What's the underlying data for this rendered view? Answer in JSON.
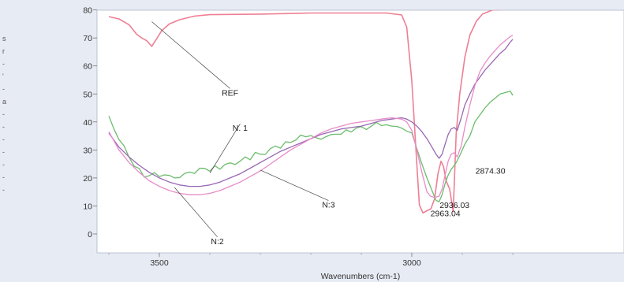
{
  "chart_data": {
    "type": "line",
    "xlabel": "Wavenumbers (cm-1)",
    "ylabel": "",
    "title": "",
    "x_reversed": true,
    "xlim": [
      3600,
      2800
    ],
    "ylim": [
      -5,
      80
    ],
    "x_ticks": [
      3500,
      3000
    ],
    "y_ticks": [
      0,
      10,
      20,
      30,
      40,
      50,
      60,
      70,
      80
    ],
    "grid": false,
    "series": [
      {
        "name": "REF",
        "color": "#ee7f94",
        "points": [
          [
            3600,
            77.6
          ],
          [
            3580,
            76.8
          ],
          [
            3560,
            74.7
          ],
          [
            3545,
            71.3
          ],
          [
            3535,
            70.0
          ],
          [
            3525,
            69.0
          ],
          [
            3515,
            67.0
          ],
          [
            3505,
            69.8
          ],
          [
            3495,
            72.7
          ],
          [
            3480,
            75.0
          ],
          [
            3460,
            76.5
          ],
          [
            3430,
            77.8
          ],
          [
            3400,
            78.3
          ],
          [
            3300,
            78.5
          ],
          [
            3200,
            78.9
          ],
          [
            3100,
            78.9
          ],
          [
            3050,
            78.9
          ],
          [
            3020,
            78.2
          ],
          [
            3010,
            73.8
          ],
          [
            3000,
            54.7
          ],
          [
            2990,
            24.8
          ],
          [
            2985,
            10.4
          ],
          [
            2978,
            7.5
          ],
          [
            2970,
            8.3
          ],
          [
            2962,
            9.0
          ],
          [
            2955,
            12.5
          ],
          [
            2948,
            21.7
          ],
          [
            2942,
            26.0
          ],
          [
            2937,
            24.0
          ],
          [
            2932,
            19.0
          ],
          [
            2925,
            16.0
          ],
          [
            2918,
            8.0
          ],
          [
            2912,
            36.0
          ],
          [
            2905,
            50.0
          ],
          [
            2895,
            63.0
          ],
          [
            2885,
            71.0
          ],
          [
            2872,
            76.0
          ],
          [
            2860,
            78.5
          ],
          [
            2840,
            80.0
          ],
          [
            2800,
            80.2
          ]
        ]
      },
      {
        "name": "N. 1",
        "color": "#6cbc6c",
        "points": [
          [
            3600,
            42.1
          ],
          [
            3590,
            37.5
          ],
          [
            3580,
            33.7
          ],
          [
            3570,
            31.5
          ],
          [
            3560,
            27.4
          ],
          [
            3550,
            24.2
          ],
          [
            3540,
            23.4
          ],
          [
            3530,
            20.3
          ],
          [
            3520,
            20.8
          ],
          [
            3510,
            21.9
          ],
          [
            3500,
            20.5
          ],
          [
            3490,
            21.1
          ],
          [
            3480,
            20.9
          ],
          [
            3470,
            20.0
          ],
          [
            3460,
            20.1
          ],
          [
            3450,
            21.6
          ],
          [
            3440,
            22.1
          ],
          [
            3430,
            21.6
          ],
          [
            3420,
            23.5
          ],
          [
            3410,
            23.4
          ],
          [
            3400,
            22.4
          ],
          [
            3390,
            24.4
          ],
          [
            3380,
            23.1
          ],
          [
            3370,
            24.8
          ],
          [
            3360,
            25.4
          ],
          [
            3350,
            24.8
          ],
          [
            3340,
            26.0
          ],
          [
            3330,
            27.5
          ],
          [
            3320,
            26.5
          ],
          [
            3310,
            29.1
          ],
          [
            3300,
            28.5
          ],
          [
            3290,
            28.4
          ],
          [
            3280,
            30.5
          ],
          [
            3270,
            31.4
          ],
          [
            3260,
            30.6
          ],
          [
            3250,
            32.9
          ],
          [
            3240,
            32.7
          ],
          [
            3230,
            33.5
          ],
          [
            3220,
            35.3
          ],
          [
            3210,
            34.7
          ],
          [
            3200,
            35.1
          ],
          [
            3190,
            34.4
          ],
          [
            3180,
            33.8
          ],
          [
            3170,
            34.7
          ],
          [
            3160,
            35.5
          ],
          [
            3150,
            35.6
          ],
          [
            3140,
            35.6
          ],
          [
            3130,
            37.2
          ],
          [
            3120,
            36.4
          ],
          [
            3110,
            37.8
          ],
          [
            3100,
            38.3
          ],
          [
            3090,
            37.3
          ],
          [
            3080,
            38.5
          ],
          [
            3070,
            39.8
          ],
          [
            3060,
            38.7
          ],
          [
            3050,
            39.0
          ],
          [
            3040,
            38.5
          ],
          [
            3030,
            38.4
          ],
          [
            3020,
            37.8
          ],
          [
            3010,
            36.7
          ],
          [
            3000,
            36.1
          ],
          [
            2990,
            30.5
          ],
          [
            2980,
            25.0
          ],
          [
            2970,
            20.0
          ],
          [
            2960,
            15.5
          ],
          [
            2952,
            12.0
          ],
          [
            2946,
            11.5
          ],
          [
            2940,
            14.0
          ],
          [
            2934,
            18.0
          ],
          [
            2928,
            21.0
          ],
          [
            2922,
            23.0
          ],
          [
            2916,
            24.5
          ],
          [
            2912,
            25.5
          ],
          [
            2905,
            28.0
          ],
          [
            2895,
            32.0
          ],
          [
            2885,
            35.0
          ],
          [
            2875,
            40.0
          ],
          [
            2865,
            42.5
          ],
          [
            2855,
            45.0
          ],
          [
            2845,
            47.0
          ],
          [
            2835,
            48.5
          ],
          [
            2825,
            50.0
          ],
          [
            2815,
            50.5
          ],
          [
            2805,
            51.0
          ],
          [
            2800,
            49.5
          ]
        ]
      },
      {
        "name": "N:2",
        "color": "#9868b4",
        "points": [
          [
            3600,
            36.0
          ],
          [
            3580,
            31.0
          ],
          [
            3560,
            27.5
          ],
          [
            3540,
            24.5
          ],
          [
            3520,
            22.0
          ],
          [
            3500,
            20.0
          ],
          [
            3480,
            18.5
          ],
          [
            3460,
            17.5
          ],
          [
            3440,
            17.0
          ],
          [
            3420,
            17.0
          ],
          [
            3400,
            17.5
          ],
          [
            3380,
            18.5
          ],
          [
            3360,
            20.0
          ],
          [
            3340,
            21.5
          ],
          [
            3320,
            23.5
          ],
          [
            3300,
            25.5
          ],
          [
            3280,
            27.5
          ],
          [
            3260,
            29.5
          ],
          [
            3240,
            31.0
          ],
          [
            3220,
            32.5
          ],
          [
            3200,
            34.0
          ],
          [
            3180,
            35.5
          ],
          [
            3160,
            36.5
          ],
          [
            3140,
            37.5
          ],
          [
            3120,
            38.0
          ],
          [
            3100,
            38.5
          ],
          [
            3080,
            39.5
          ],
          [
            3060,
            40.5
          ],
          [
            3040,
            41.0
          ],
          [
            3020,
            41.5
          ],
          [
            3010,
            41.0
          ],
          [
            3000,
            40.0
          ],
          [
            2990,
            38.5
          ],
          [
            2980,
            36.5
          ],
          [
            2970,
            34.0
          ],
          [
            2960,
            31.0
          ],
          [
            2952,
            28.5
          ],
          [
            2946,
            27.0
          ],
          [
            2940,
            28.5
          ],
          [
            2934,
            32.0
          ],
          [
            2928,
            35.5
          ],
          [
            2922,
            37.5
          ],
          [
            2916,
            38.0
          ],
          [
            2910,
            37.0
          ],
          [
            2902,
            41.5
          ],
          [
            2895,
            46.0
          ],
          [
            2885,
            50.0
          ],
          [
            2875,
            53.5
          ],
          [
            2865,
            56.0
          ],
          [
            2855,
            58.5
          ],
          [
            2845,
            60.5
          ],
          [
            2835,
            62.5
          ],
          [
            2825,
            64.5
          ],
          [
            2815,
            66.0
          ],
          [
            2805,
            68.5
          ],
          [
            2800,
            69.5
          ]
        ]
      },
      {
        "name": "N:3",
        "color": "#e88cc8",
        "points": [
          [
            3600,
            36.5
          ],
          [
            3580,
            30.0
          ],
          [
            3560,
            25.5
          ],
          [
            3540,
            22.0
          ],
          [
            3520,
            19.0
          ],
          [
            3500,
            17.0
          ],
          [
            3480,
            15.5
          ],
          [
            3460,
            14.5
          ],
          [
            3440,
            14.0
          ],
          [
            3420,
            14.0
          ],
          [
            3400,
            14.5
          ],
          [
            3380,
            15.5
          ],
          [
            3360,
            17.0
          ],
          [
            3340,
            18.5
          ],
          [
            3320,
            20.5
          ],
          [
            3300,
            22.5
          ],
          [
            3280,
            25.0
          ],
          [
            3260,
            27.5
          ],
          [
            3240,
            30.0
          ],
          [
            3220,
            32.0
          ],
          [
            3200,
            34.0
          ],
          [
            3180,
            36.0
          ],
          [
            3160,
            37.5
          ],
          [
            3140,
            38.5
          ],
          [
            3120,
            39.5
          ],
          [
            3100,
            40.0
          ],
          [
            3080,
            40.5
          ],
          [
            3060,
            41.0
          ],
          [
            3040,
            41.5
          ],
          [
            3020,
            41.0
          ],
          [
            3010,
            40.0
          ],
          [
            3000,
            37.0
          ],
          [
            2990,
            30.0
          ],
          [
            2980,
            22.0
          ],
          [
            2970,
            15.0
          ],
          [
            2963,
            13.5
          ],
          [
            2955,
            13.0
          ],
          [
            2946,
            13.5
          ],
          [
            2940,
            16.0
          ],
          [
            2934,
            21.0
          ],
          [
            2928,
            26.0
          ],
          [
            2922,
            28.5
          ],
          [
            2916,
            29.0
          ],
          [
            2910,
            27.5
          ],
          [
            2902,
            31.5
          ],
          [
            2895,
            38.0
          ],
          [
            2885,
            46.0
          ],
          [
            2875,
            53.0
          ],
          [
            2865,
            58.0
          ],
          [
            2855,
            61.0
          ],
          [
            2845,
            63.5
          ],
          [
            2835,
            65.5
          ],
          [
            2825,
            67.5
          ],
          [
            2815,
            69.0
          ],
          [
            2805,
            70.5
          ],
          [
            2800,
            71.0
          ]
        ]
      }
    ],
    "peak_labels": [
      {
        "text": "2963.04",
        "x": 2963.04,
        "y": 9.0,
        "lx": 2963,
        "ly": 7.4
      },
      {
        "text": "2936.03",
        "x": 2936.03,
        "y": 12.0,
        "lx": 2945,
        "ly": 10.4
      },
      {
        "text": "2874.30",
        "x": 2874.3,
        "y": 24.5,
        "lx": 2874,
        "ly": 22.6
      }
    ],
    "series_labels": [
      {
        "text": "REF",
        "x": 3515,
        "y": 75.8,
        "lx": 3360,
        "ly": 50.8
      },
      {
        "text": "N. 1",
        "x": 3400,
        "y": 21.7,
        "lx": 3340,
        "ly": 38.2
      },
      {
        "text": "N:3",
        "x": 3300,
        "y": 22.8,
        "lx": 3165,
        "ly": 10.8
      },
      {
        "text": "N:2",
        "x": 3470,
        "y": 16.6,
        "lx": 3385,
        "ly": -2.2
      }
    ],
    "left_margin_text": [
      "s",
      "r",
      "-",
      "'",
      "-",
      "a",
      "-",
      "-",
      "-",
      "-",
      "-",
      "-",
      "-"
    ]
  }
}
